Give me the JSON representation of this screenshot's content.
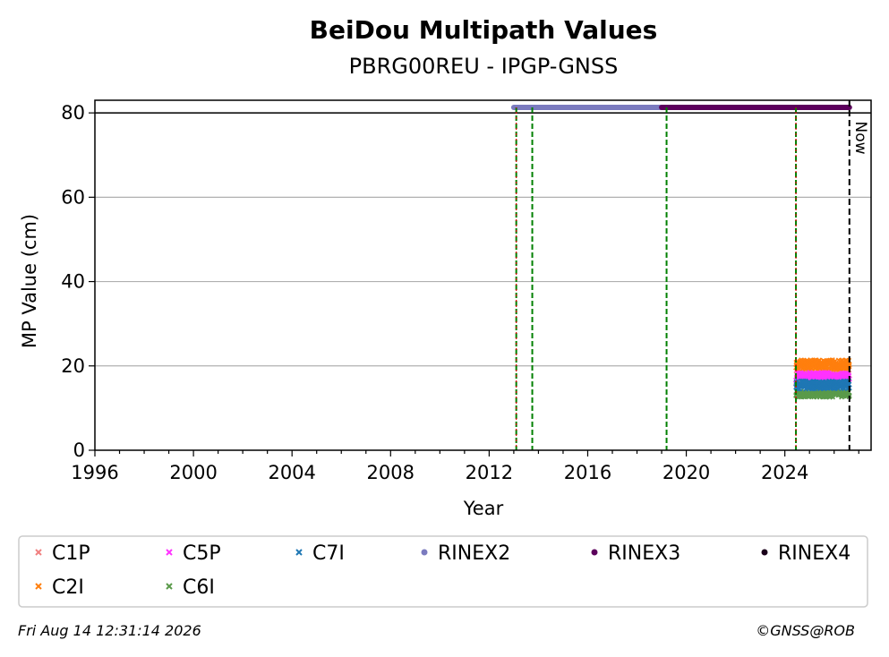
{
  "chart_data": {
    "type": "scatter",
    "title": "BeiDou Multipath Values",
    "subtitle": "PBRG00REU - IPGP-GNSS",
    "xlabel": "Year",
    "ylabel": "MP Value (cm)",
    "xlim": [
      1996,
      2027.5
    ],
    "ylim": [
      0,
      83
    ],
    "xticks": [
      1996,
      2000,
      2004,
      2008,
      2012,
      2016,
      2020,
      2024
    ],
    "xtick_labels": [
      "1996",
      "2000",
      "2004",
      "2008",
      "2012",
      "2016",
      "2020",
      "2024"
    ],
    "yticks": [
      0,
      20,
      40,
      60,
      80
    ],
    "ytick_labels": [
      "0",
      "20",
      "40",
      "60",
      "80"
    ],
    "grid": "horizontal",
    "reference_line_y": 80,
    "now": {
      "x": 2026.62,
      "label": "Now"
    },
    "event_lines": [
      {
        "x": 2013.1,
        "style": "green-red-dash"
      },
      {
        "x": 2013.75,
        "style": "green-dash"
      },
      {
        "x": 2019.2,
        "style": "green-dash"
      },
      {
        "x": 2024.45,
        "style": "green-red-dash"
      }
    ],
    "rinex_bars": [
      {
        "name": "RINEX2",
        "start": 2013.0,
        "end": 2019.0,
        "y": 81.3,
        "color": "#7b7bbf"
      },
      {
        "name": "RINEX3",
        "start": 2019.0,
        "end": 2026.62,
        "y": 81.3,
        "color": "#5c005c"
      }
    ],
    "series": [
      {
        "name": "C1P",
        "color": "#f08080",
        "marker": "x",
        "start": 2024.45,
        "end": 2026.62,
        "mean": 17.5,
        "spread": 2.0
      },
      {
        "name": "C2I",
        "color": "#ff7f0e",
        "marker": "x",
        "start": 2024.45,
        "end": 2026.62,
        "mean": 20.3,
        "spread": 1.4
      },
      {
        "name": "C5P",
        "color": "#ff33ff",
        "marker": "x",
        "start": 2024.45,
        "end": 2026.62,
        "mean": 17.5,
        "spread": 1.2
      },
      {
        "name": "C6I",
        "color": "#5a9a4a",
        "marker": "x",
        "start": 2024.45,
        "end": 2026.62,
        "mean": 13.3,
        "spread": 0.9
      },
      {
        "name": "C7I",
        "color": "#1f77b4",
        "marker": "x",
        "start": 2024.45,
        "end": 2026.62,
        "mean": 15.5,
        "spread": 1.2
      }
    ],
    "legend": [
      {
        "name": "C1P",
        "color": "#f08080",
        "marker": "x"
      },
      {
        "name": "C5P",
        "color": "#ff33ff",
        "marker": "x"
      },
      {
        "name": "C7I",
        "color": "#1f77b4",
        "marker": "x"
      },
      {
        "name": "RINEX2",
        "color": "#7b7bbf",
        "marker": "dot"
      },
      {
        "name": "RINEX3",
        "color": "#5c005c",
        "marker": "dot"
      },
      {
        "name": "RINEX4",
        "color": "#1a001a",
        "marker": "dot"
      },
      {
        "name": "C2I",
        "color": "#ff7f0e",
        "marker": "x"
      },
      {
        "name": "C6I",
        "color": "#5a9a4a",
        "marker": "x"
      }
    ],
    "legend_position": "bottom"
  },
  "footer": {
    "timestamp": "Fri Aug 14 12:31:14 2026",
    "credit": "©GNSS@ROB"
  }
}
